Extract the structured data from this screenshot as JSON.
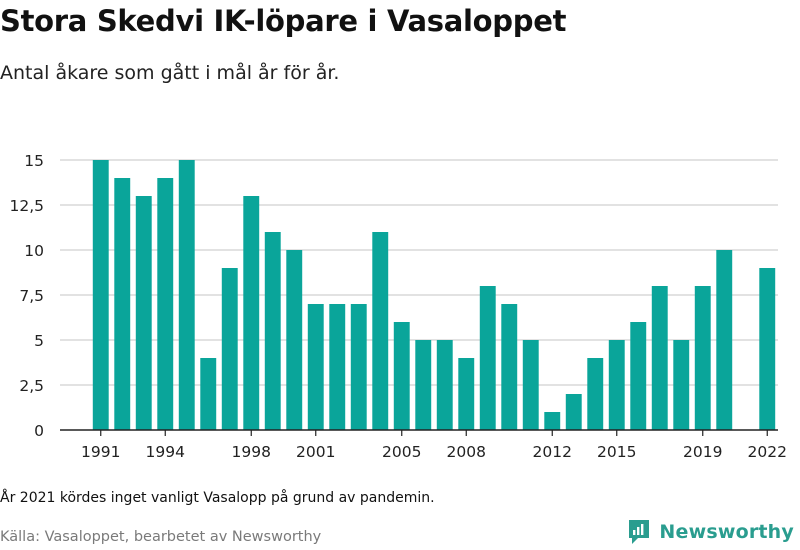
{
  "header": {
    "title": "Stora Skedvi IK-löpare i Vasaloppet",
    "subtitle": "Antal åkare som gått i mål år för år."
  },
  "footer": {
    "note": "År 2021 kördes inget vanligt Vasalopp på grund av pandemin.",
    "source": "Källa: Vasaloppet, bearbetet av Newsworthy",
    "brand": "Newsworthy",
    "brand_icon": "newsworthy-logo-icon"
  },
  "colors": {
    "bar": "#0aa59a",
    "grid": "#d9d9d9",
    "axis": "#222222",
    "brand": "#2a9d8f"
  },
  "chart_data": {
    "type": "bar",
    "title": "Stora Skedvi IK-löpare i Vasaloppet",
    "subtitle": "Antal åkare som gått i mål år för år.",
    "xlabel": "",
    "ylabel": "",
    "ylim": [
      0,
      15
    ],
    "grid": true,
    "yticks": [
      0,
      2.5,
      5,
      7.5,
      10,
      12.5,
      15
    ],
    "ytick_labels": [
      "0",
      "2,5",
      "5",
      "7,5",
      "10",
      "12,5",
      "15"
    ],
    "xtick_labels": [
      "1991",
      "1994",
      "1998",
      "2001",
      "2005",
      "2008",
      "2012",
      "2015",
      "2019",
      "2022"
    ],
    "categories": [
      "1991",
      "1992",
      "1993",
      "1994",
      "1995",
      "1996",
      "1997",
      "1998",
      "1999",
      "2000",
      "2001",
      "2002",
      "2003",
      "2004",
      "2005",
      "2006",
      "2007",
      "2008",
      "2009",
      "2010",
      "2011",
      "2012",
      "2013",
      "2014",
      "2015",
      "2016",
      "2017",
      "2018",
      "2019",
      "2020",
      "2021",
      "2022"
    ],
    "values": [
      15,
      14,
      13,
      14,
      15,
      4,
      9,
      13,
      11,
      10,
      7,
      7,
      7,
      11,
      6,
      5,
      5,
      4,
      8,
      7,
      5,
      1,
      2,
      4,
      5,
      6,
      8,
      5,
      8,
      10,
      null,
      9
    ]
  }
}
